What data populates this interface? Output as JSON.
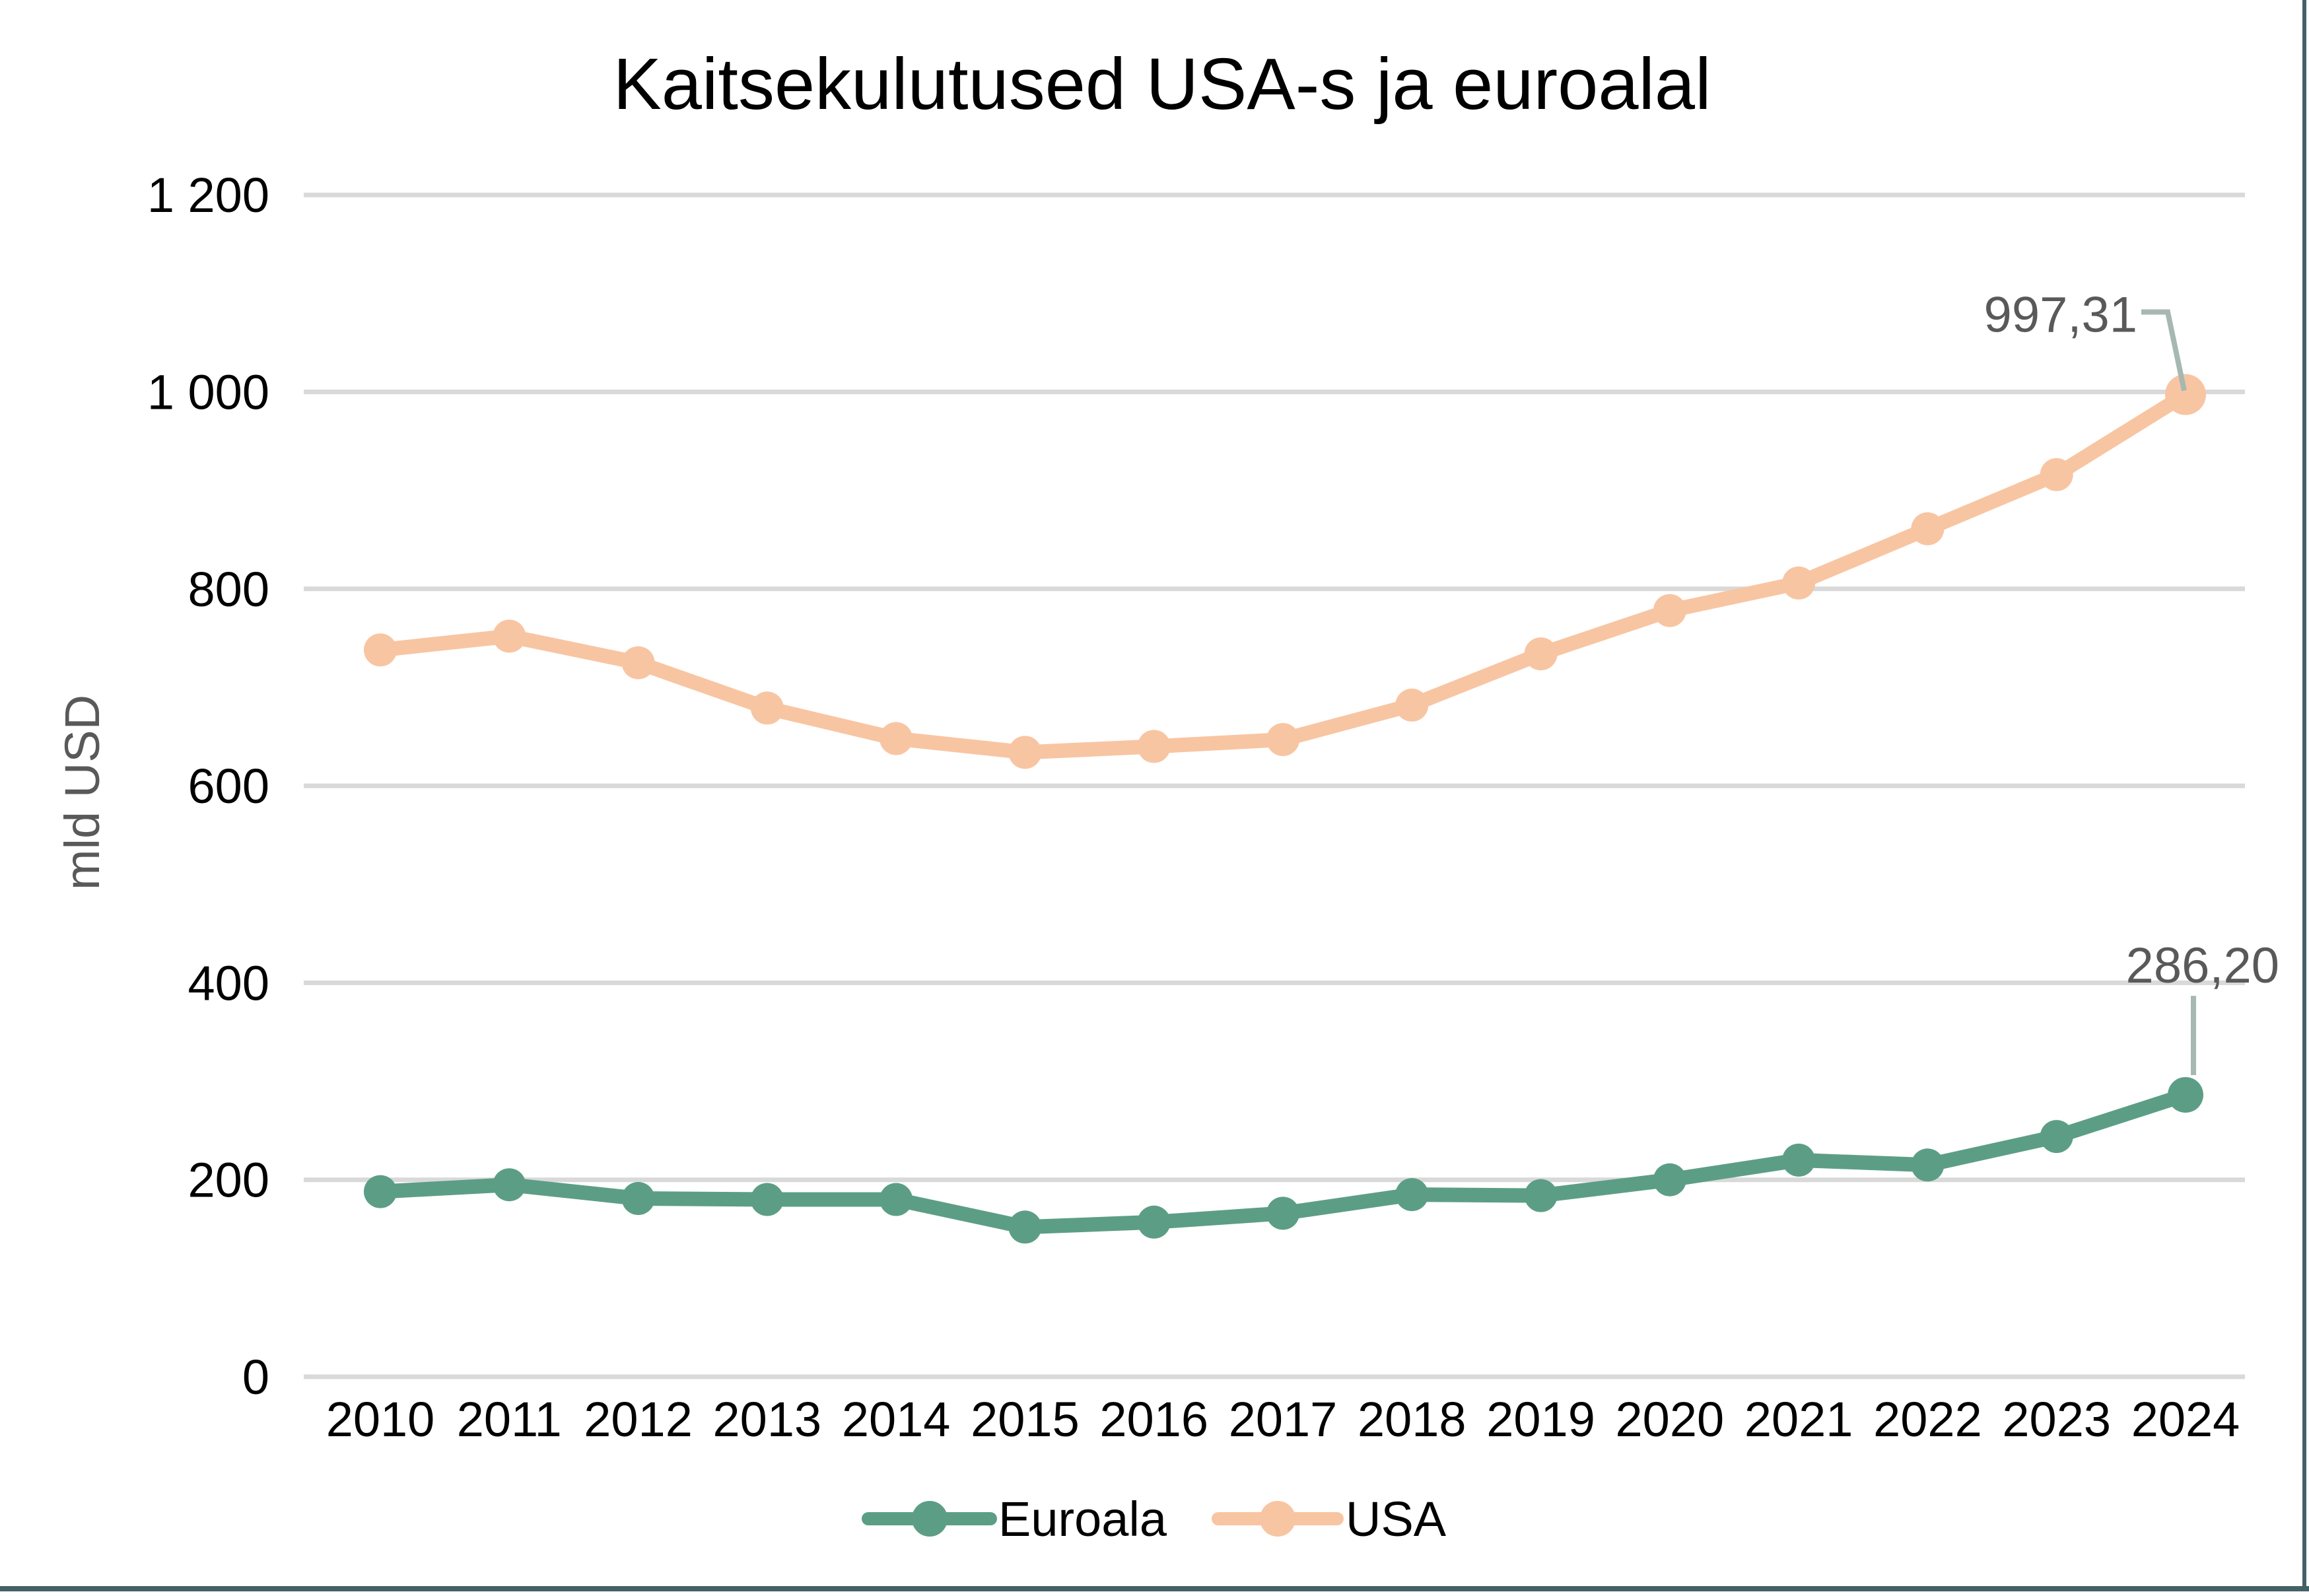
{
  "page": {
    "title": "Kaitsekulutused USA-s ja euroalal",
    "frame_border_color": "#436167",
    "background": "#FFFFFF"
  },
  "chart_data": {
    "type": "line",
    "title": "Kaitsekulutused USA-s ja euroalal",
    "ylabel": "mld USD",
    "xlabel": "",
    "x": [
      2010,
      2011,
      2012,
      2013,
      2014,
      2015,
      2016,
      2017,
      2018,
      2019,
      2020,
      2021,
      2022,
      2023,
      2024
    ],
    "series": [
      {
        "name": "Euroala",
        "color": "#5C9E85",
        "values": [
          188,
          195,
          181,
          180,
          180,
          152,
          157,
          166,
          185,
          184,
          200,
          220,
          215,
          244,
          286.2
        ],
        "last_value_label": "286,20"
      },
      {
        "name": "USA",
        "color": "#F8C5A2",
        "values": [
          738,
          752,
          725,
          679,
          648,
          634,
          640,
          647,
          682,
          734,
          778,
          806,
          861,
          916,
          997.31
        ],
        "last_value_label": "997,31"
      }
    ],
    "ylim": [
      0,
      1200
    ],
    "ytick_step": 200,
    "ytick_labels": [
      "0",
      "200",
      "400",
      "600",
      "800",
      "1 000",
      "1 200"
    ],
    "grid": "horizontal",
    "legend_position": "bottom-center",
    "legend_labels": [
      "Euroala",
      "USA"
    ],
    "colors": {
      "gridline": "#D9D9D9",
      "axis_text": "#000000",
      "secondary_text": "#595959",
      "data_label_text": "#595959",
      "leader_line": "#A6B8B1",
      "background": "#FFFFFF"
    }
  }
}
